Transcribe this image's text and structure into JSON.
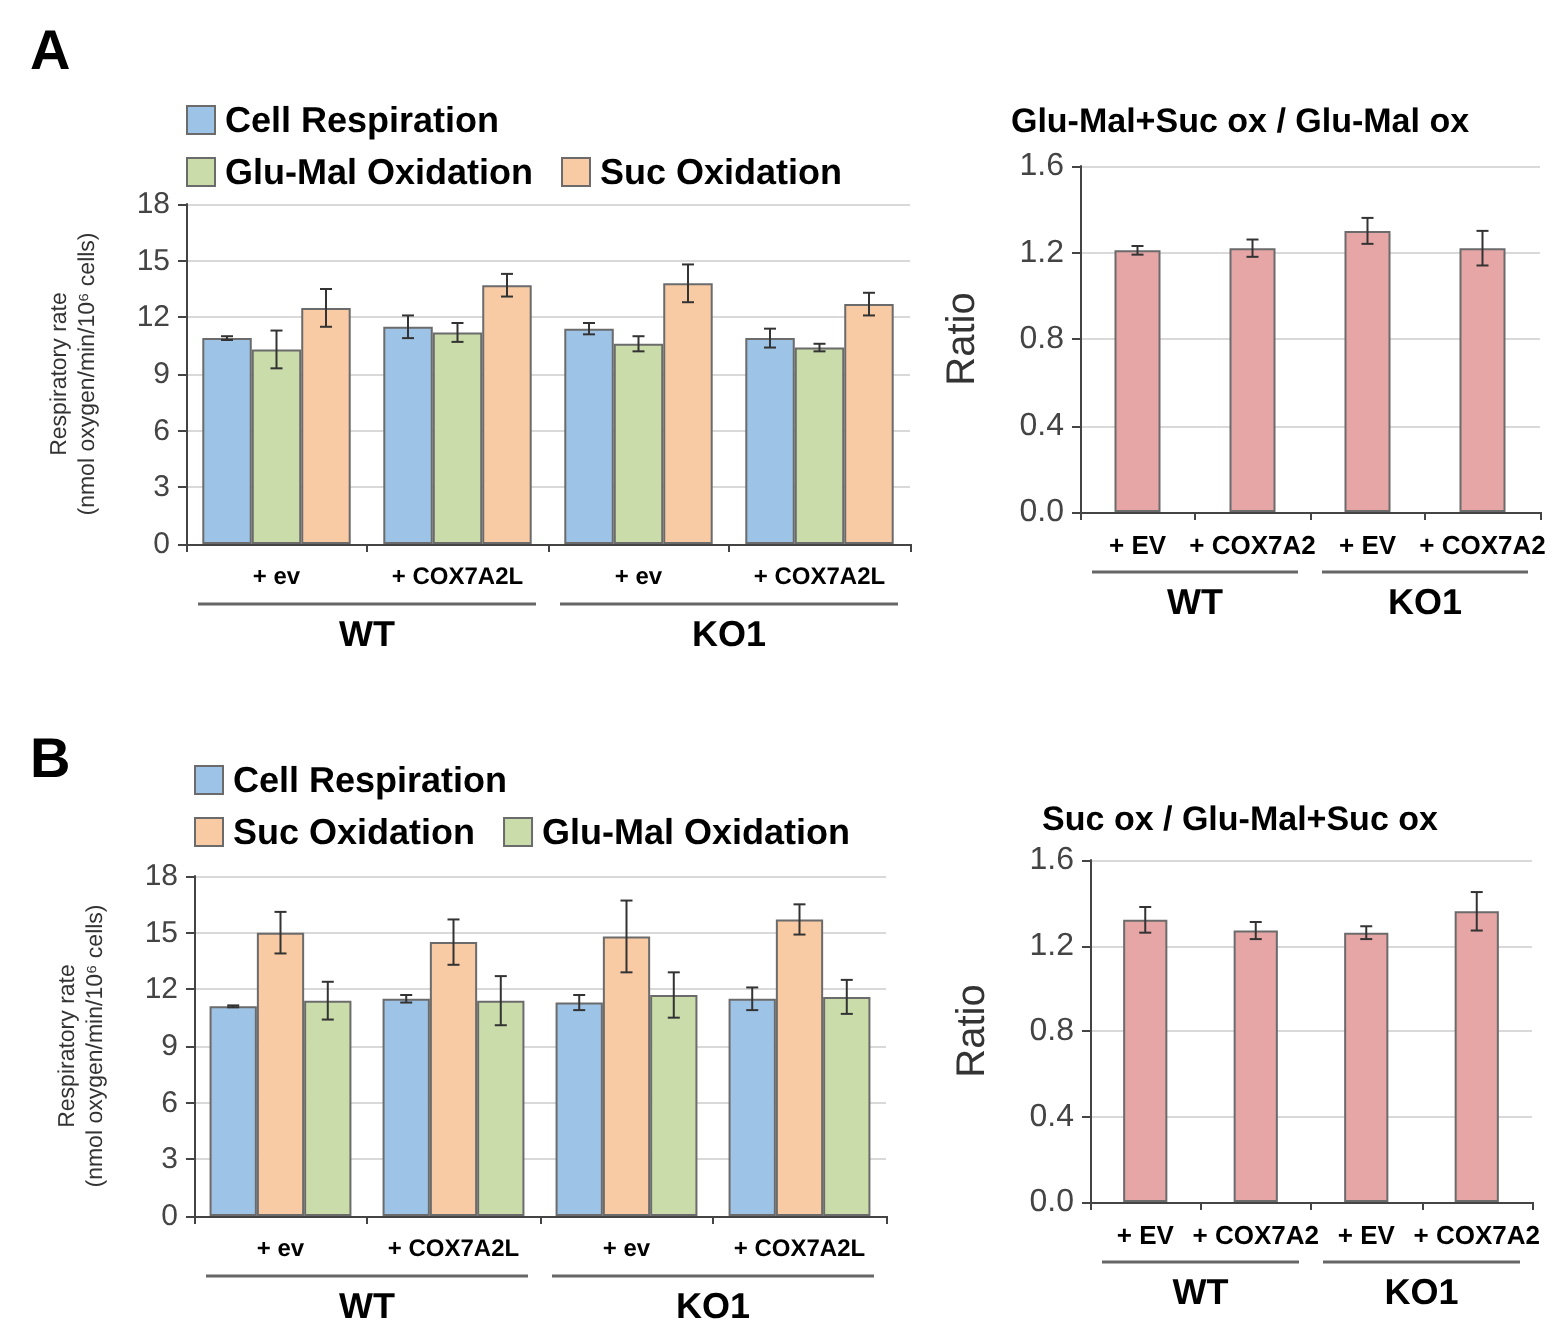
{
  "chart_data": [
    {
      "type": "bar",
      "title": "A",
      "ylabel": "Respiratory rate\n(nmol oxygen/min/10⁶ cells)",
      "categories": [
        "+ ev",
        "+ COX7A2L",
        "+ ev",
        "+ COX7A2L"
      ],
      "annotations": [
        "WT",
        "KO1"
      ],
      "legend": "top",
      "grid": "y",
      "ylim": [
        0,
        18
      ],
      "yticks": [
        0,
        3,
        6,
        9,
        12,
        15,
        18
      ],
      "series": [
        {
          "name": "Cell Respiration",
          "color": "#9dc3e6",
          "values": [
            10.9,
            11.5,
            11.4,
            10.9
          ],
          "errors": [
            0.1,
            0.6,
            0.3,
            0.5
          ]
        },
        {
          "name": "Glu-Mal Oxidation",
          "color": "#c9dcaa",
          "values": [
            10.3,
            11.2,
            10.6,
            10.4
          ],
          "errors": [
            1.0,
            0.5,
            0.4,
            0.2
          ]
        },
        {
          "name": "Suc Oxidation",
          "color": "#f8cba4",
          "values": [
            12.5,
            13.7,
            13.8,
            12.7
          ],
          "errors": [
            1.0,
            0.6,
            1.0,
            0.6
          ]
        }
      ]
    },
    {
      "type": "bar",
      "title": "Glu-Mal+Suc ox / Glu-Mal ox",
      "ylabel": "Ratio",
      "categories": [
        "+ EV",
        "+ COX7A2",
        "+ EV",
        "+ COX7A2"
      ],
      "annotations": [
        "WT",
        "KO1"
      ],
      "grid": "y",
      "ylim": [
        0,
        1.6
      ],
      "yticks": [
        {
          "value": 0,
          "label": "0.0"
        },
        0.4,
        0.8,
        1.2,
        1.6
      ],
      "series": [
        {
          "color": "#e6a6a6",
          "values": [
            1.21,
            1.22,
            1.3,
            1.22
          ],
          "errors": [
            0.02,
            0.04,
            0.06,
            0.08
          ]
        }
      ]
    },
    {
      "type": "bar",
      "title": "B",
      "ylabel": "Respiratory rate\n(nmol oxygen/min/10⁶ cells)",
      "categories": [
        "+ ev",
        "+ COX7A2L",
        "+ ev",
        "+ COX7A2L"
      ],
      "annotations": [
        "WT",
        "KO1"
      ],
      "legend": "top",
      "grid": "y",
      "ylim": [
        0,
        18
      ],
      "yticks": [
        0,
        3,
        6,
        9,
        12,
        15,
        18
      ],
      "series": [
        {
          "name": "Cell Respiration",
          "color": "#9dc3e6",
          "values": [
            11.1,
            11.5,
            11.3,
            11.5
          ],
          "errors": [
            0.05,
            0.2,
            0.4,
            0.6
          ]
        },
        {
          "name": "Suc Oxidation",
          "color": "#f8cba4",
          "values": [
            15.0,
            14.5,
            14.8,
            15.7
          ],
          "errors": [
            1.1,
            1.2,
            1.9,
            0.8
          ]
        },
        {
          "name": "Glu-Mal Oxidation",
          "color": "#c9dcaa",
          "values": [
            11.4,
            11.4,
            11.7,
            11.6
          ],
          "errors": [
            1.0,
            1.3,
            1.2,
            0.9
          ]
        }
      ]
    },
    {
      "type": "bar",
      "title": "Suc ox / Glu-Mal+Suc ox",
      "ylabel": "Ratio",
      "categories": [
        "+ EV",
        "+ COX7A2",
        "+ EV",
        "+ COX7A2"
      ],
      "annotations": [
        "WT",
        "KO1"
      ],
      "grid": "y",
      "ylim": [
        0,
        1.6
      ],
      "yticks": [
        {
          "value": 0,
          "label": "0.0"
        },
        0.4,
        0.8,
        1.2,
        1.6
      ],
      "series": [
        {
          "color": "#e6a6a6",
          "values": [
            1.32,
            1.27,
            1.26,
            1.36
          ],
          "errors": [
            0.06,
            0.04,
            0.03,
            0.09
          ]
        }
      ]
    }
  ]
}
